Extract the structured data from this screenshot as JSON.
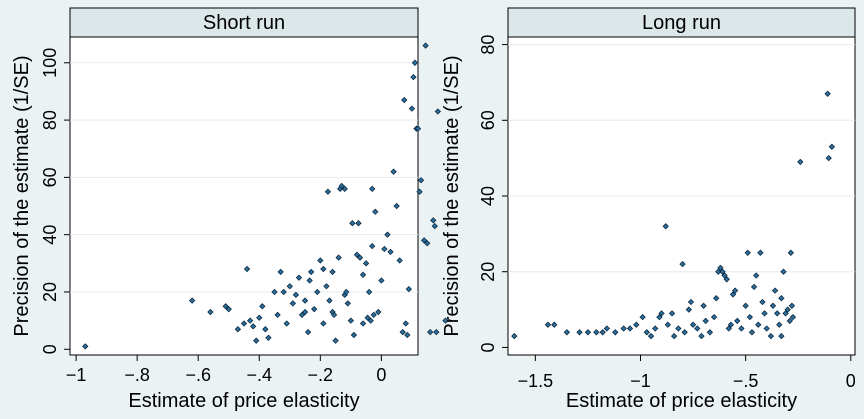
{
  "colors": {
    "background": "#eaf2f3",
    "plot_area": "#ffffff",
    "header": "#dce7ea",
    "grid": "#e6ecee",
    "marker_fill": "#2e6f9b",
    "marker_stroke": "#0b2a44"
  },
  "chart_data": [
    {
      "type": "scatter",
      "title": "Short run",
      "xlabel": "Estimate of price elasticity",
      "ylabel": "Precision of the estimate (1/SE)",
      "xlim": [
        -1.02,
        0.12
      ],
      "ylim": [
        -2,
        109
      ],
      "xticks": [
        -1,
        -0.8,
        -0.6,
        -0.4,
        -0.2,
        0
      ],
      "xtick_labels": [
        "−1",
        "−.8",
        "−.6",
        "−.4",
        "−.2",
        "0"
      ],
      "yticks": [
        0,
        20,
        40,
        60,
        80,
        100
      ],
      "ytick_labels": [
        "0",
        "20",
        "40",
        "60",
        "80",
        "100"
      ],
      "grid": true,
      "legend": "none",
      "points": [
        [
          -0.97,
          1
        ],
        [
          -0.62,
          17
        ],
        [
          -0.56,
          13
        ],
        [
          -0.51,
          15
        ],
        [
          -0.5,
          14
        ],
        [
          -0.47,
          7
        ],
        [
          -0.45,
          9
        ],
        [
          -0.44,
          28
        ],
        [
          -0.43,
          10
        ],
        [
          -0.42,
          8
        ],
        [
          -0.41,
          3
        ],
        [
          -0.4,
          11
        ],
        [
          -0.39,
          15
        ],
        [
          -0.38,
          7
        ],
        [
          -0.37,
          4
        ],
        [
          -0.35,
          20
        ],
        [
          -0.34,
          12
        ],
        [
          -0.33,
          27
        ],
        [
          -0.32,
          20
        ],
        [
          -0.31,
          9
        ],
        [
          -0.3,
          22
        ],
        [
          -0.29,
          16
        ],
        [
          -0.28,
          19
        ],
        [
          -0.27,
          25
        ],
        [
          -0.26,
          12
        ],
        [
          -0.25,
          17
        ],
        [
          -0.24,
          6
        ],
        [
          -0.235,
          24
        ],
        [
          -0.23,
          27
        ],
        [
          -0.22,
          14
        ],
        [
          -0.21,
          20
        ],
        [
          -0.2,
          31
        ],
        [
          -0.19,
          9
        ],
        [
          -0.18,
          22
        ],
        [
          -0.17,
          17
        ],
        [
          -0.16,
          13
        ],
        [
          -0.155,
          12
        ],
        [
          -0.15,
          3
        ],
        [
          -0.14,
          32
        ],
        [
          -0.135,
          56
        ],
        [
          -0.13,
          57
        ],
        [
          -0.12,
          19
        ],
        [
          -0.11,
          16
        ],
        [
          -0.1,
          10
        ],
        [
          -0.09,
          5
        ],
        [
          -0.08,
          33
        ],
        [
          -0.075,
          44
        ],
        [
          -0.07,
          32
        ],
        [
          -0.06,
          26
        ],
        [
          -0.05,
          30
        ],
        [
          -0.045,
          11
        ],
        [
          -0.04,
          20
        ],
        [
          -0.035,
          10
        ],
        [
          -0.03,
          56
        ],
        [
          -0.025,
          12
        ],
        [
          -0.02,
          48
        ],
        [
          -0.01,
          13
        ],
        [
          0.0,
          24
        ],
        [
          0.01,
          35
        ],
        [
          0.02,
          40
        ],
        [
          0.03,
          34
        ],
        [
          0.04,
          62
        ],
        [
          0.05,
          50
        ],
        [
          0.06,
          31
        ],
        [
          0.07,
          6
        ],
        [
          0.075,
          87
        ],
        [
          0.08,
          9
        ],
        [
          0.085,
          5
        ],
        [
          0.09,
          21
        ],
        [
          0.1,
          84
        ],
        [
          0.105,
          95
        ],
        [
          0.11,
          100
        ],
        [
          0.115,
          77
        ],
        [
          0.12,
          77
        ],
        [
          0.125,
          55
        ],
        [
          0.13,
          59
        ],
        [
          0.14,
          38
        ],
        [
          0.145,
          106
        ],
        [
          0.15,
          37
        ],
        [
          0.16,
          6
        ],
        [
          0.17,
          45
        ],
        [
          0.175,
          43
        ],
        [
          0.18,
          6
        ],
        [
          0.185,
          83
        ],
        [
          0.21,
          10
        ],
        [
          -0.175,
          55
        ],
        [
          -0.16,
          27
        ],
        [
          -0.12,
          56
        ],
        [
          -0.095,
          44
        ],
        [
          -0.03,
          36
        ],
        [
          -0.06,
          9
        ],
        [
          -0.115,
          20
        ],
        [
          -0.19,
          28
        ],
        [
          -0.25,
          13
        ]
      ]
    },
    {
      "type": "scatter",
      "title": "Long run",
      "xlabel": "Estimate of price elasticity",
      "ylabel": "Precision of the estimate (1/SE)",
      "xlim": [
        -1.63,
        0.02
      ],
      "ylim": [
        -2,
        82
      ],
      "xticks": [
        -1.5,
        -1,
        -0.5,
        0
      ],
      "xtick_labels": [
        "−1.5",
        "−1",
        "−.5",
        "0"
      ],
      "yticks": [
        0,
        20,
        40,
        60,
        80
      ],
      "ytick_labels": [
        "0",
        "20",
        "40",
        "60",
        "80"
      ],
      "grid": true,
      "legend": "none",
      "points": [
        [
          -1.6,
          3
        ],
        [
          -1.44,
          6
        ],
        [
          -1.41,
          6
        ],
        [
          -1.35,
          4
        ],
        [
          -1.29,
          4
        ],
        [
          -1.25,
          4
        ],
        [
          -1.21,
          4
        ],
        [
          -1.18,
          4
        ],
        [
          -1.16,
          5
        ],
        [
          -1.12,
          4
        ],
        [
          -1.08,
          5
        ],
        [
          -1.05,
          5
        ],
        [
          -1.02,
          6
        ],
        [
          -0.99,
          8
        ],
        [
          -0.97,
          4
        ],
        [
          -0.95,
          3
        ],
        [
          -0.93,
          5
        ],
        [
          -0.91,
          8
        ],
        [
          -0.88,
          32
        ],
        [
          -0.87,
          6
        ],
        [
          -0.85,
          9
        ],
        [
          -0.84,
          3
        ],
        [
          -0.82,
          5
        ],
        [
          -0.8,
          22
        ],
        [
          -0.79,
          4
        ],
        [
          -0.77,
          10
        ],
        [
          -0.75,
          6
        ],
        [
          -0.73,
          5
        ],
        [
          -0.71,
          3
        ],
        [
          -0.69,
          7
        ],
        [
          -0.67,
          4
        ],
        [
          -0.65,
          8
        ],
        [
          -0.63,
          20
        ],
        [
          -0.62,
          21
        ],
        [
          -0.61,
          20
        ],
        [
          -0.6,
          19
        ],
        [
          -0.59,
          18
        ],
        [
          -0.58,
          5
        ],
        [
          -0.56,
          14
        ],
        [
          -0.54,
          7
        ],
        [
          -0.52,
          5
        ],
        [
          -0.5,
          11
        ],
        [
          -0.49,
          25
        ],
        [
          -0.48,
          8
        ],
        [
          -0.47,
          4
        ],
        [
          -0.45,
          19
        ],
        [
          -0.44,
          6
        ],
        [
          -0.43,
          25
        ],
        [
          -0.42,
          12
        ],
        [
          -0.41,
          9
        ],
        [
          -0.4,
          5
        ],
        [
          -0.38,
          3
        ],
        [
          -0.37,
          11
        ],
        [
          -0.36,
          15
        ],
        [
          -0.35,
          9
        ],
        [
          -0.34,
          6
        ],
        [
          -0.33,
          13
        ],
        [
          -0.32,
          20
        ],
        [
          -0.31,
          9
        ],
        [
          -0.3,
          10
        ],
        [
          -0.29,
          7
        ],
        [
          -0.285,
          25
        ],
        [
          -0.28,
          11
        ],
        [
          -0.275,
          8
        ],
        [
          -0.24,
          49
        ],
        [
          -0.11,
          67
        ],
        [
          -0.105,
          50
        ],
        [
          -0.09,
          53
        ],
        [
          -0.64,
          13
        ],
        [
          -0.7,
          11
        ],
        [
          -0.76,
          12
        ],
        [
          -0.9,
          9
        ],
        [
          -0.55,
          15
        ],
        [
          -0.46,
          16
        ],
        [
          -0.33,
          3
        ],
        [
          -0.57,
          6
        ]
      ]
    }
  ]
}
